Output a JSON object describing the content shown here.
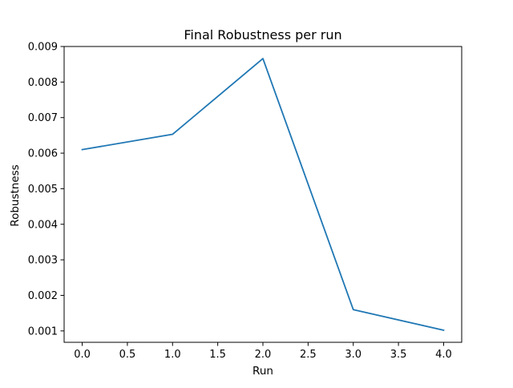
{
  "chart_data": {
    "type": "line",
    "title": "Final Robustness per run",
    "xlabel": "Run",
    "ylabel": "Robustness",
    "x": [
      0,
      1,
      2,
      3,
      4
    ],
    "series": [
      {
        "values": [
          0.0061,
          0.00653,
          0.00866,
          0.0016,
          0.00102
        ],
        "color": "#1f77b4"
      }
    ],
    "xlim": [
      -0.2,
      4.2
    ],
    "ylim": [
      0.00068,
      0.009
    ],
    "xticks": [
      0.0,
      0.5,
      1.0,
      1.5,
      2.0,
      2.5,
      3.0,
      3.5,
      4.0
    ],
    "xtick_labels": [
      "0.0",
      "0.5",
      "1.0",
      "1.5",
      "2.0",
      "2.5",
      "3.0",
      "3.5",
      "4.0"
    ],
    "yticks": [
      0.001,
      0.002,
      0.003,
      0.004,
      0.005,
      0.006,
      0.007,
      0.008,
      0.009
    ],
    "ytick_labels": [
      "0.001",
      "0.002",
      "0.003",
      "0.004",
      "0.005",
      "0.006",
      "0.007",
      "0.008",
      "0.009"
    ],
    "grid": false,
    "legend": false
  }
}
